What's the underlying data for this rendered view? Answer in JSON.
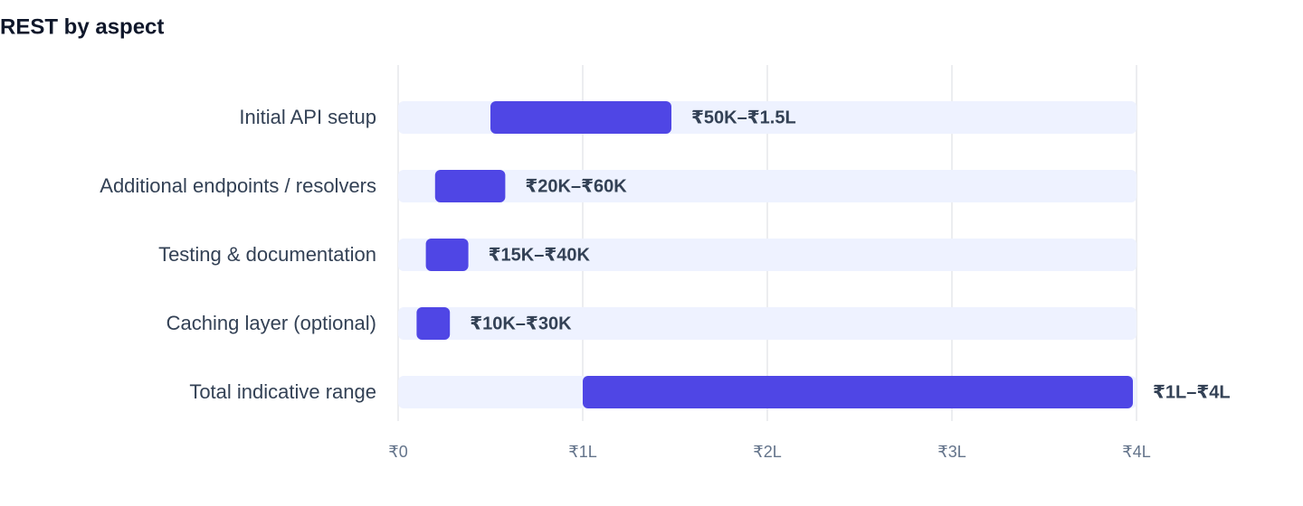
{
  "chart_data": {
    "type": "range-bar",
    "title": "REST by aspect",
    "categories": [
      "Initial API setup",
      "Additional endpoints / resolvers",
      "Testing & documentation",
      "Caching layer (optional)",
      "Total indicative range"
    ],
    "low": [
      50000,
      20000,
      15000,
      10000,
      100000
    ],
    "high": [
      150000,
      60000,
      40000,
      30000,
      400000
    ],
    "value_labels": [
      "₹50K–₹1.5L",
      "₹20K–₹60K",
      "₹15K–₹40K",
      "₹10K–₹30K",
      "₹1L–₹4L"
    ],
    "color": "#4f46e5",
    "track_color": "#eef2ff",
    "xlim": [
      0,
      400000
    ],
    "xticks": [
      {
        "value": 0,
        "label": "₹0"
      },
      {
        "value": 100000,
        "label": "₹1L"
      },
      {
        "value": 200000,
        "label": "₹2L"
      },
      {
        "value": 300000,
        "label": "₹3L"
      },
      {
        "value": 400000,
        "label": "₹4L"
      }
    ],
    "grid": true
  }
}
